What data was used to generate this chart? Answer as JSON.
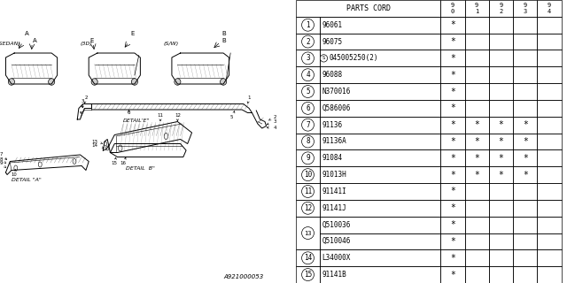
{
  "bg_color": "#ffffff",
  "watermark": "A921000053",
  "table": {
    "header_parts": "PARTS CORD",
    "years": [
      "9\n0",
      "9\n1",
      "9\n2",
      "9\n3",
      "9\n4"
    ],
    "rows": [
      {
        "num": "1",
        "part": "96061",
        "s_prefix": false,
        "marks": [
          1,
          0,
          0,
          0,
          0
        ]
      },
      {
        "num": "2",
        "part": "96075",
        "s_prefix": false,
        "marks": [
          1,
          0,
          0,
          0,
          0
        ]
      },
      {
        "num": "3",
        "part": "045005250(2)",
        "s_prefix": true,
        "marks": [
          1,
          0,
          0,
          0,
          0
        ]
      },
      {
        "num": "4",
        "part": "96088",
        "s_prefix": false,
        "marks": [
          1,
          0,
          0,
          0,
          0
        ]
      },
      {
        "num": "5",
        "part": "N370016",
        "s_prefix": false,
        "marks": [
          1,
          0,
          0,
          0,
          0
        ]
      },
      {
        "num": "6",
        "part": "Q586006",
        "s_prefix": false,
        "marks": [
          1,
          0,
          0,
          0,
          0
        ]
      },
      {
        "num": "7",
        "part": "91136",
        "s_prefix": false,
        "marks": [
          1,
          1,
          1,
          1,
          0
        ]
      },
      {
        "num": "8",
        "part": "91136A",
        "s_prefix": false,
        "marks": [
          1,
          1,
          1,
          1,
          0
        ]
      },
      {
        "num": "9",
        "part": "91084",
        "s_prefix": false,
        "marks": [
          1,
          1,
          1,
          1,
          0
        ]
      },
      {
        "num": "10",
        "part": "91013H",
        "s_prefix": false,
        "marks": [
          1,
          1,
          1,
          1,
          0
        ]
      },
      {
        "num": "11",
        "part": "91141I",
        "s_prefix": false,
        "marks": [
          1,
          0,
          0,
          0,
          0
        ]
      },
      {
        "num": "12",
        "part": "91141J",
        "s_prefix": false,
        "marks": [
          1,
          0,
          0,
          0,
          0
        ]
      },
      {
        "num": "13",
        "part": "Q510036",
        "s_prefix": false,
        "marks": [
          1,
          0,
          0,
          0,
          0
        ],
        "span_start": true
      },
      {
        "num": "",
        "part": "Q510046",
        "s_prefix": false,
        "marks": [
          1,
          0,
          0,
          0,
          0
        ],
        "span_cont": true
      },
      {
        "num": "14",
        "part": "L34000X",
        "s_prefix": false,
        "marks": [
          1,
          0,
          0,
          0,
          0
        ]
      },
      {
        "num": "15",
        "part": "91141B",
        "s_prefix": false,
        "marks": [
          1,
          0,
          0,
          0,
          0
        ]
      }
    ]
  },
  "diagram": {
    "sedan_label": "(SEDAN)",
    "3d_label": "(3D)",
    "sw_label": "(S/W)",
    "detail_e": "DETAIL'E\"",
    "detail_a": "DETAIL \"A\"",
    "detail_b": "DETAIL  B\""
  }
}
